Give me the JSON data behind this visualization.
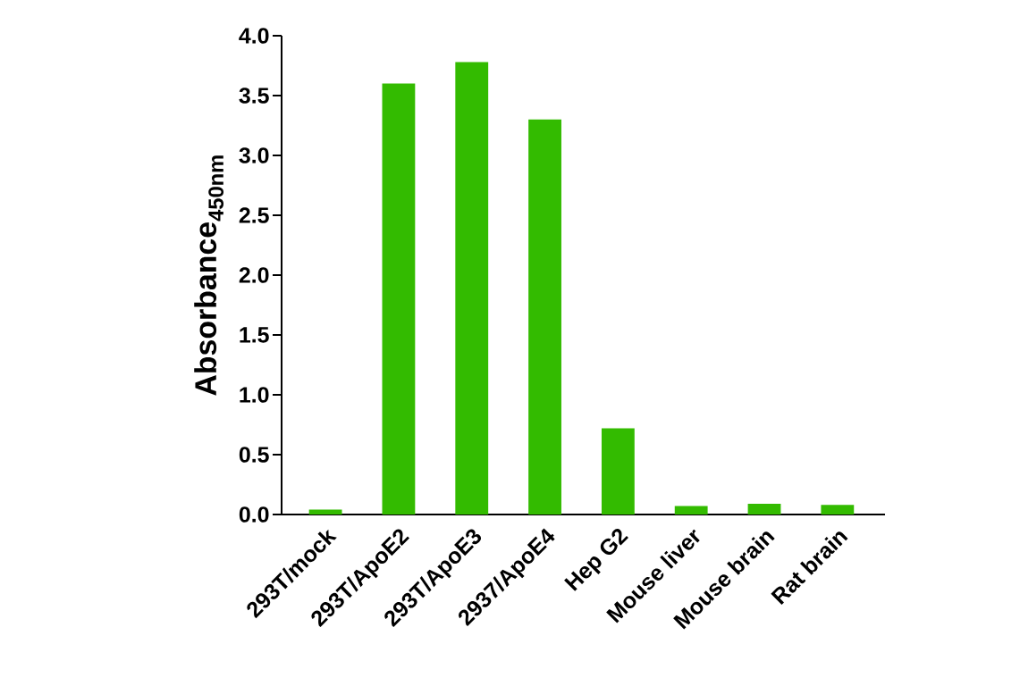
{
  "chart_data": {
    "type": "bar",
    "ylabel": "Absorbance$_{450nm}$",
    "categories": [
      "293T/mock",
      "293T/ApoE2",
      "293T/ApoE3",
      "2937/ApoE4",
      "Hep G2",
      "Mouse liver",
      "Mouse brain",
      "Rat brain"
    ],
    "values": [
      0.04,
      3.6,
      3.78,
      3.3,
      0.72,
      0.07,
      0.09,
      0.08
    ],
    "color": "#33bb00",
    "ylim": [
      0,
      4.0
    ],
    "yticks": [
      {
        "value": 0,
        "label": "0.0"
      },
      {
        "value": 0.5,
        "label": "0.5"
      },
      {
        "value": 1,
        "label": "1.0"
      },
      {
        "value": 1.5,
        "label": "1.5"
      },
      {
        "value": 2,
        "label": "2.0"
      },
      {
        "value": 2.5,
        "label": "2.5"
      },
      {
        "value": 3,
        "label": "3.0"
      },
      {
        "value": 3.5,
        "label": "3.5"
      },
      {
        "value": 4,
        "label": "4.0"
      }
    ]
  }
}
